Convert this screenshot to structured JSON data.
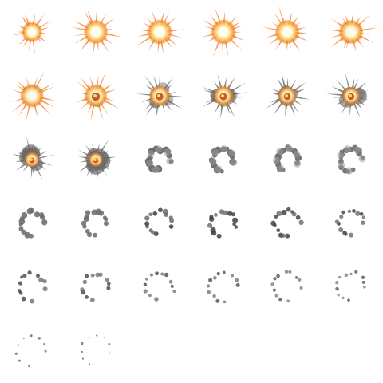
{
  "sprite_sheet": {
    "columns": 6,
    "frame_count": 32,
    "colors": {
      "background": "#ffffff",
      "fire_core": "#fffdf0",
      "fire_mid": "#ffd36a",
      "fire_outer": "#f07a1e",
      "ember": "#b8430a",
      "smoke_dark": "#3a3a3a",
      "smoke_mid": "#6a6a6a",
      "smoke_light": "#9a9a9a"
    },
    "frames": [
      {
        "index": 1,
        "phase": "flash",
        "fire": 0.55,
        "smoke": 0.0
      },
      {
        "index": 2,
        "phase": "flash",
        "fire": 0.85,
        "smoke": 0.0
      },
      {
        "index": 3,
        "phase": "flash",
        "fire": 0.9,
        "smoke": 0.0
      },
      {
        "index": 4,
        "phase": "flash",
        "fire": 0.9,
        "smoke": 0.0
      },
      {
        "index": 5,
        "phase": "flash",
        "fire": 0.85,
        "smoke": 0.05
      },
      {
        "index": 6,
        "phase": "flash",
        "fire": 0.85,
        "smoke": 0.1
      },
      {
        "index": 7,
        "phase": "fireball",
        "fire": 0.8,
        "smoke": 0.25
      },
      {
        "index": 8,
        "phase": "fireball",
        "fire": 0.75,
        "smoke": 0.35
      },
      {
        "index": 9,
        "phase": "fireball",
        "fire": 0.6,
        "smoke": 0.5
      },
      {
        "index": 10,
        "phase": "fireball",
        "fire": 0.55,
        "smoke": 0.6
      },
      {
        "index": 11,
        "phase": "fireball",
        "fire": 0.45,
        "smoke": 0.7
      },
      {
        "index": 12,
        "phase": "fireball",
        "fire": 0.4,
        "smoke": 0.8
      },
      {
        "index": 13,
        "phase": "smoke",
        "fire": 0.2,
        "smoke": 0.95
      },
      {
        "index": 14,
        "phase": "smoke",
        "fire": 0.15,
        "smoke": 1.0
      },
      {
        "index": 15,
        "phase": "ring",
        "fire": 0.0,
        "smoke": 0.85
      },
      {
        "index": 16,
        "phase": "ring",
        "fire": 0.0,
        "smoke": 0.8
      },
      {
        "index": 17,
        "phase": "ring",
        "fire": 0.0,
        "smoke": 0.75
      },
      {
        "index": 18,
        "phase": "ring",
        "fire": 0.0,
        "smoke": 0.72
      },
      {
        "index": 19,
        "phase": "ring",
        "fire": 0.0,
        "smoke": 0.65
      },
      {
        "index": 20,
        "phase": "ring",
        "fire": 0.0,
        "smoke": 0.62
      },
      {
        "index": 21,
        "phase": "ring",
        "fire": 0.0,
        "smoke": 0.58
      },
      {
        "index": 22,
        "phase": "ring",
        "fire": 0.0,
        "smoke": 0.55
      },
      {
        "index": 23,
        "phase": "ring",
        "fire": 0.0,
        "smoke": 0.52
      },
      {
        "index": 24,
        "phase": "ring",
        "fire": 0.0,
        "smoke": 0.5
      },
      {
        "index": 25,
        "phase": "dissipate",
        "fire": 0.0,
        "smoke": 0.45
      },
      {
        "index": 26,
        "phase": "dissipate",
        "fire": 0.0,
        "smoke": 0.42
      },
      {
        "index": 27,
        "phase": "dissipate",
        "fire": 0.0,
        "smoke": 0.38
      },
      {
        "index": 28,
        "phase": "dissipate",
        "fire": 0.0,
        "smoke": 0.34
      },
      {
        "index": 29,
        "phase": "dissipate",
        "fire": 0.0,
        "smoke": 0.3
      },
      {
        "index": 30,
        "phase": "dissipate",
        "fire": 0.0,
        "smoke": 0.26
      },
      {
        "index": 31,
        "phase": "fade",
        "fire": 0.0,
        "smoke": 0.18
      },
      {
        "index": 32,
        "phase": "fade",
        "fire": 0.0,
        "smoke": 0.14
      }
    ]
  }
}
